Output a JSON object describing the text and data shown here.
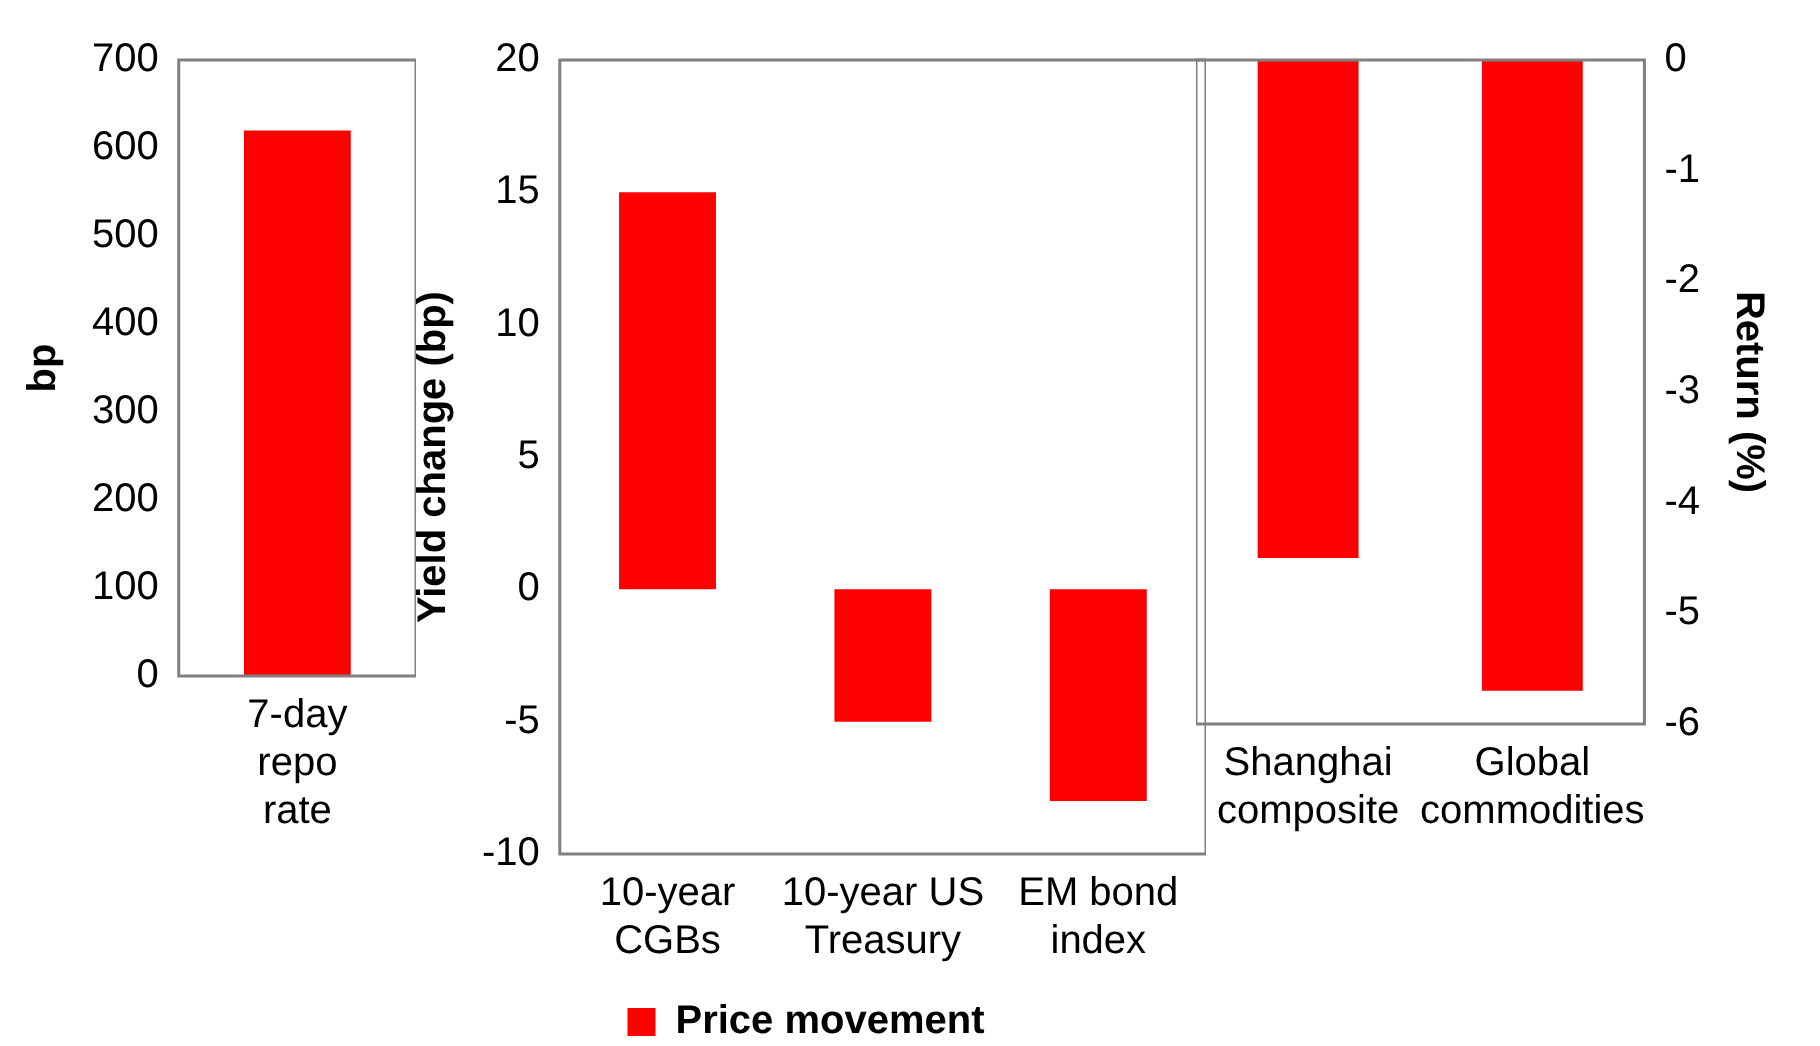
{
  "chart_data": [
    {
      "type": "bar",
      "categories": [
        "7-day repo rate"
      ],
      "ylabel": "bp",
      "ylim": [
        0,
        700
      ],
      "yticks": [
        0,
        100,
        200,
        300,
        400,
        500,
        600,
        700
      ],
      "grid": false,
      "series": [
        {
          "color": "#ff0000",
          "values": [
            620
          ]
        }
      ]
    },
    {
      "type": "bar",
      "categories": [
        "10-year CGBs",
        "10-year US Treasury",
        "EM bond index"
      ],
      "ylabel": "Yield change (bp)",
      "ylim": [
        -10,
        20
      ],
      "yticks": [
        -10,
        -5,
        0,
        5,
        10,
        15,
        20
      ],
      "grid": false,
      "legend": "bottom",
      "series": [
        {
          "name": "Price movement",
          "color": "#ff0000",
          "values": [
            15,
            -5,
            -8
          ]
        }
      ]
    },
    {
      "type": "bar",
      "categories": [
        "Shanghai composite",
        "Global commodities"
      ],
      "y2label": "Return (%)",
      "y2lim": [
        -6,
        0
      ],
      "y2ticks": [
        -6,
        -5,
        -4,
        -3,
        -2,
        -1,
        0
      ],
      "grid": false,
      "series": [
        {
          "color": "#ff0000",
          "axis": "y2",
          "values": [
            -4.5,
            -5.7
          ]
        }
      ]
    }
  ]
}
